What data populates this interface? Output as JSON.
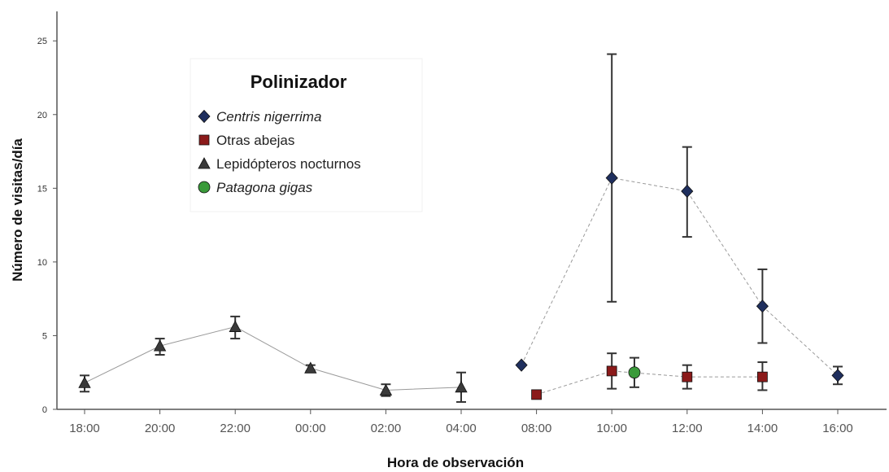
{
  "chart_data": {
    "type": "line",
    "xlabel": "Hora de observación",
    "ylabel": "Número de visitas/día",
    "categories": [
      "18:00",
      "20:00",
      "22:00",
      "00:00",
      "02:00",
      "04:00",
      "08:00",
      "10:00",
      "12:00",
      "14:00",
      "16:00"
    ],
    "ylim": [
      0,
      27
    ],
    "yticks": [
      0,
      5,
      10,
      15,
      20,
      25
    ],
    "grid": false,
    "legend": {
      "title": "Polinizador",
      "placement": "upper-left",
      "entries": [
        {
          "label": "Centris nigerrima",
          "italic": true,
          "marker": "diamond",
          "color": "#1f2f5e"
        },
        {
          "label": "Otras abejas",
          "italic": false,
          "marker": "square",
          "color": "#8b1a1a"
        },
        {
          "label": "Lepidópteros nocturnos",
          "italic": false,
          "marker": "triangle",
          "color": "#3a3a3a"
        },
        {
          "label": "Patagona gigas",
          "italic": true,
          "marker": "circle",
          "color": "#3a9a3a"
        }
      ]
    },
    "series": [
      {
        "name": "Centris nigerrima",
        "marker": "diamond",
        "color": "#1f2f5e",
        "line": "dashed",
        "points": [
          {
            "x": 7.6,
            "y": 3.0,
            "lo": null,
            "hi": null
          },
          {
            "x": 10.0,
            "y": 15.7,
            "lo": 7.3,
            "hi": 24.1
          },
          {
            "x": 12.0,
            "y": 14.8,
            "lo": 11.7,
            "hi": 17.8
          },
          {
            "x": 14.0,
            "y": 7.0,
            "lo": 4.5,
            "hi": 9.5
          },
          {
            "x": 16.0,
            "y": 2.3,
            "lo": 1.7,
            "hi": 2.9
          }
        ]
      },
      {
        "name": "Otras abejas",
        "marker": "square",
        "color": "#8b1a1a",
        "line": "dashed",
        "points": [
          {
            "x": 8.0,
            "y": 1.0,
            "lo": null,
            "hi": null
          },
          {
            "x": 10.0,
            "y": 2.6,
            "lo": 1.4,
            "hi": 3.8
          },
          {
            "x": 12.0,
            "y": 2.2,
            "lo": 1.4,
            "hi": 3.0
          },
          {
            "x": 14.0,
            "y": 2.2,
            "lo": 1.3,
            "hi": 3.2
          }
        ]
      },
      {
        "name": "Patagona gigas",
        "marker": "circle",
        "color": "#3a9a3a",
        "line": "dashed",
        "points": [
          {
            "x": 10.6,
            "y": 2.5,
            "lo": 1.5,
            "hi": 3.5
          }
        ]
      },
      {
        "name": "Lepidópteros nocturnos",
        "marker": "triangle",
        "color": "#3a3a3a",
        "line": "solid",
        "points": [
          {
            "x": 18.0,
            "y": 1.8,
            "lo": 1.2,
            "hi": 2.3
          },
          {
            "x": 20.0,
            "y": 4.3,
            "lo": 3.7,
            "hi": 4.8
          },
          {
            "x": 22.0,
            "y": 5.6,
            "lo": 4.8,
            "hi": 6.3
          },
          {
            "x": 24.0,
            "y": 2.8,
            "lo": 2.6,
            "hi": 3.0
          },
          {
            "x": 26.0,
            "y": 1.3,
            "lo": 0.9,
            "hi": 1.7
          },
          {
            "x": 28.0,
            "y": 1.5,
            "lo": 0.5,
            "hi": 2.5
          }
        ]
      }
    ]
  }
}
